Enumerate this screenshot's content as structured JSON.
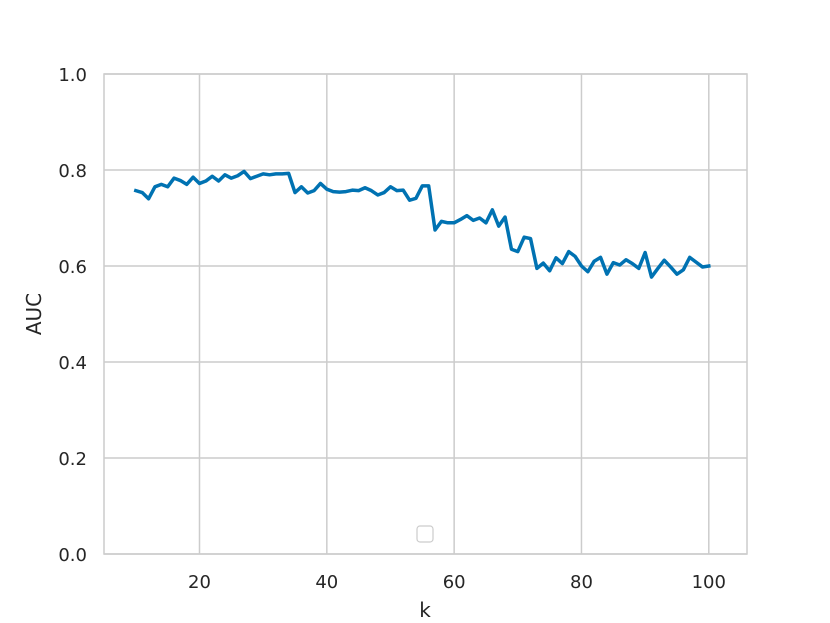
{
  "chart_data": {
    "type": "line",
    "xlabel": "k",
    "ylabel": "AUC",
    "xlim": [
      5,
      106
    ],
    "ylim": [
      0.0,
      1.0
    ],
    "xticks": [
      20,
      40,
      60,
      80,
      100
    ],
    "yticks": [
      0.0,
      0.2,
      0.4,
      0.6,
      0.8,
      1.0
    ],
    "ytick_labels": [
      "0.0",
      "0.2",
      "0.4",
      "0.6",
      "0.8",
      "1.0"
    ],
    "grid": true,
    "legend": "empty legend box, lower center",
    "series": [
      {
        "color": "#0072b2",
        "x": [
          10,
          11,
          12,
          13,
          14,
          15,
          16,
          17,
          18,
          19,
          20,
          21,
          22,
          23,
          24,
          25,
          26,
          27,
          28,
          29,
          30,
          31,
          32,
          33,
          34,
          35,
          36,
          37,
          38,
          39,
          40,
          41,
          42,
          43,
          44,
          45,
          46,
          47,
          48,
          49,
          50,
          51,
          52,
          53,
          54,
          55,
          56,
          57,
          58,
          59,
          60,
          61,
          62,
          63,
          64,
          65,
          66,
          67,
          68,
          69,
          70,
          71,
          72,
          73,
          74,
          75,
          76,
          77,
          78,
          79,
          80,
          81,
          82,
          83,
          84,
          85,
          86,
          87,
          88,
          89,
          90,
          91,
          92,
          93,
          94,
          95,
          96,
          97,
          98,
          99,
          100
        ],
        "y": [
          0.757,
          0.753,
          0.74,
          0.765,
          0.77,
          0.765,
          0.783,
          0.778,
          0.77,
          0.785,
          0.772,
          0.777,
          0.787,
          0.777,
          0.79,
          0.783,
          0.788,
          0.797,
          0.782,
          0.787,
          0.792,
          0.79,
          0.792,
          0.792,
          0.793,
          0.753,
          0.765,
          0.752,
          0.757,
          0.772,
          0.76,
          0.755,
          0.754,
          0.755,
          0.758,
          0.757,
          0.763,
          0.757,
          0.748,
          0.753,
          0.765,
          0.757,
          0.758,
          0.737,
          0.741,
          0.767,
          0.767,
          0.675,
          0.693,
          0.69,
          0.69,
          0.697,
          0.705,
          0.695,
          0.7,
          0.69,
          0.717,
          0.683,
          0.702,
          0.635,
          0.63,
          0.66,
          0.657,
          0.595,
          0.606,
          0.59,
          0.617,
          0.605,
          0.63,
          0.62,
          0.6,
          0.588,
          0.61,
          0.618,
          0.583,
          0.607,
          0.602,
          0.613,
          0.605,
          0.595,
          0.628,
          0.577,
          0.595,
          0.612,
          0.598,
          0.583,
          0.592,
          0.618,
          0.608,
          0.598,
          0.6
        ]
      }
    ]
  }
}
